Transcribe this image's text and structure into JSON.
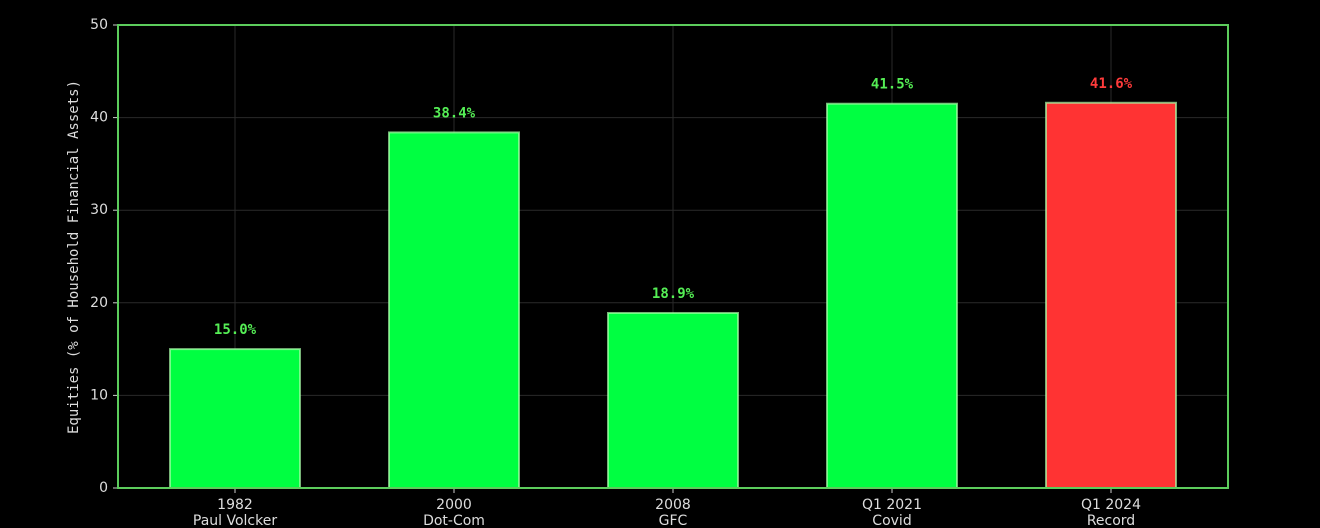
{
  "chart_data": {
    "type": "bar",
    "y_label": "Equities  (% of Household Financial Assets)",
    "categories": [
      [
        "1982",
        "Paul Volcker"
      ],
      [
        "2000",
        "Dot-Com"
      ],
      [
        "2008",
        "GFC"
      ],
      [
        "Q1 2021",
        "Covid"
      ],
      [
        "Q1 2024",
        "Record"
      ]
    ],
    "values": [
      15.0,
      38.4,
      18.9,
      41.5,
      41.6
    ],
    "value_labels": [
      "15.0%",
      "38.4%",
      "18.9%",
      "41.5%",
      "41.6%"
    ],
    "colors": [
      "#00ff41",
      "#00ff41",
      "#00ff41",
      "#00ff41",
      "#ff3333"
    ],
    "label_colors": [
      "#55ee55",
      "#55ee55",
      "#55ee55",
      "#55ee55",
      "#ff3b3b"
    ],
    "ylim": [
      0,
      50
    ],
    "yticks": [
      0,
      10,
      20,
      30,
      40,
      50
    ],
    "grid": true
  }
}
